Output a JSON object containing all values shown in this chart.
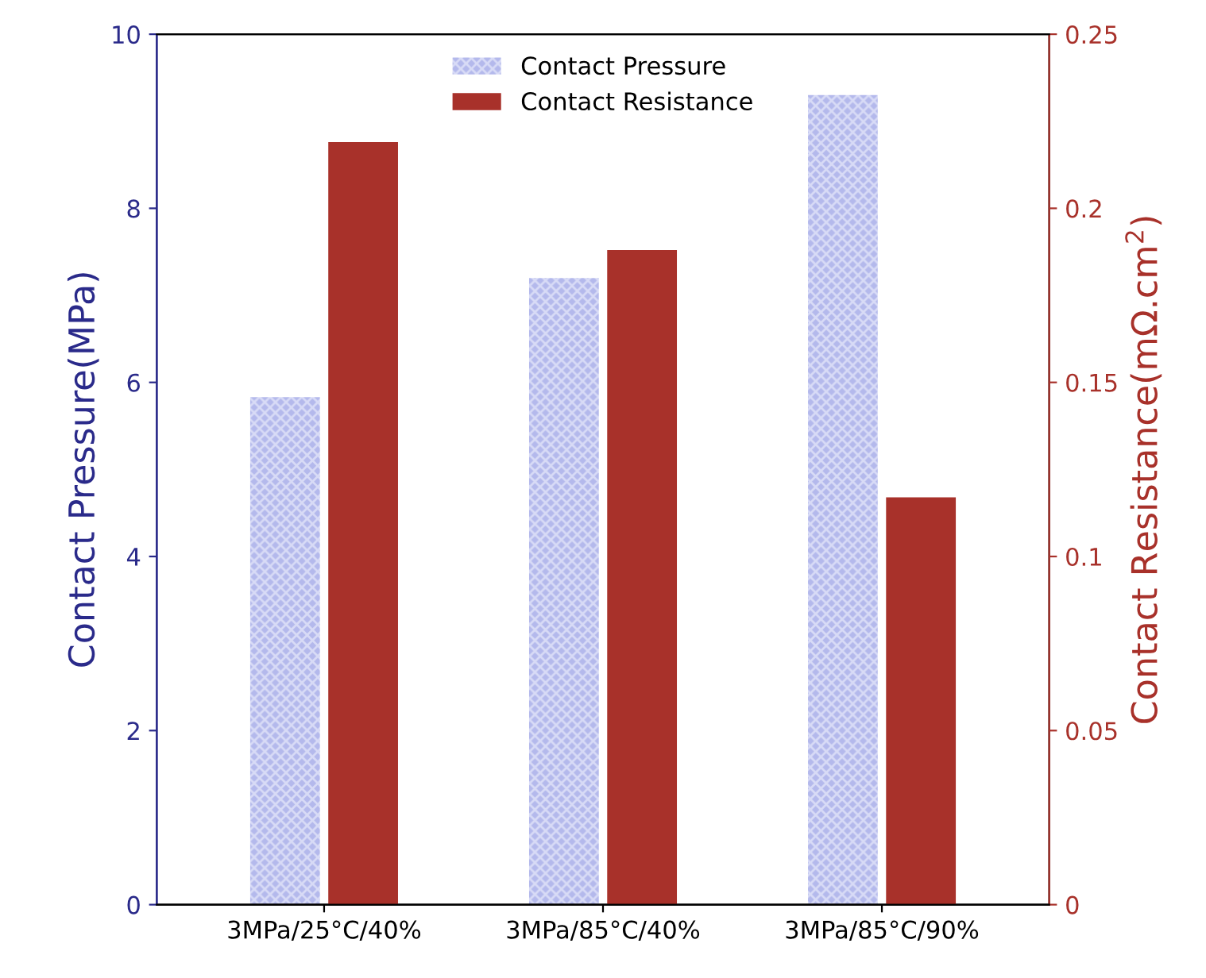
{
  "chart_data": {
    "type": "bar",
    "categories": [
      "3MPa/25°C/40%",
      "3MPa/85°C/40%",
      "3MPa/85°C/90%"
    ],
    "series": [
      {
        "name": "Contact Pressure",
        "color": "#b4b9ec",
        "values": [
          5.83,
          7.2,
          9.3
        ]
      },
      {
        "name": "Contact Resistance",
        "color": "#a8312a",
        "values": [
          0.219,
          0.188,
          0.117
        ],
        "axis": "y2"
      }
    ],
    "ylabel": "Contact Pressure(MPa)",
    "y2label": "Contact Resistance(mΩ.cm$^{2}$)",
    "ylim": [
      0,
      10
    ],
    "yticks": [
      0,
      2,
      4,
      6,
      8,
      10
    ],
    "y2lim": [
      0,
      0.25
    ],
    "y2ticks": [
      0,
      0.05,
      0.1,
      0.15,
      0.2,
      0.25
    ],
    "legend": "top",
    "grid": false
  }
}
